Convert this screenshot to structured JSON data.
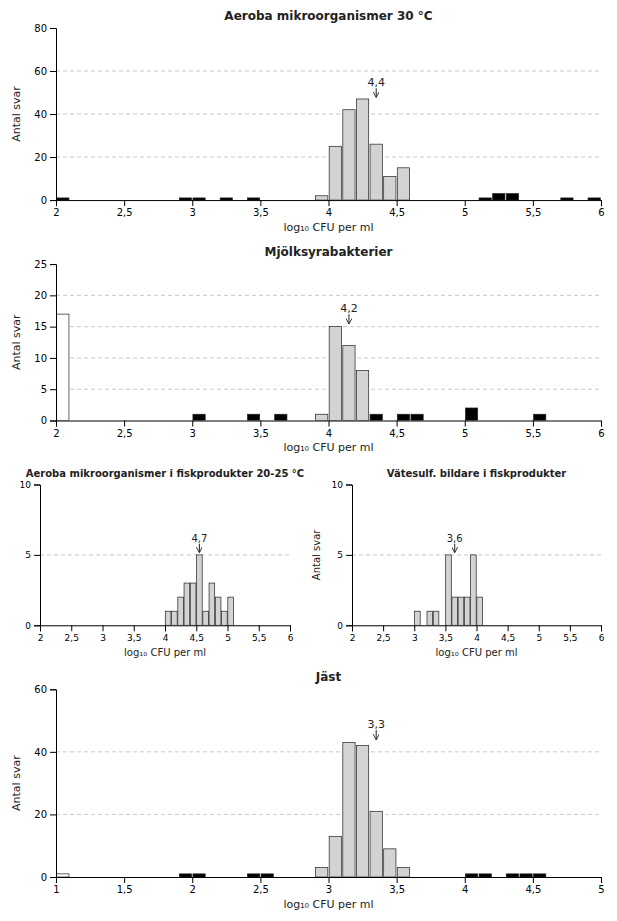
{
  "chart_data": [
    {
      "type": "bar",
      "title": "Aeroba mikroorganismer 30 °C",
      "xlabel": "log₁₀ CFU per ml",
      "ylabel": "Antal svar",
      "xlim": [
        2,
        6
      ],
      "xticks": [
        2,
        {
          "value": 2.5,
          "label": "2,5"
        },
        3,
        {
          "value": 3.5,
          "label": "3,5"
        },
        4,
        {
          "value": 4.5,
          "label": "4,5"
        },
        5,
        {
          "value": 5.5,
          "label": "5,5"
        },
        6
      ],
      "ylim": [
        0,
        80
      ],
      "yticks": [
        0,
        20,
        40,
        60,
        80
      ],
      "grid": true,
      "x": [
        2.05,
        2.95,
        3.05,
        3.25,
        3.45,
        3.95,
        4.05,
        4.15,
        4.25,
        4.35,
        4.45,
        4.55,
        5.15,
        5.25,
        5.35,
        5.75,
        5.95
      ],
      "values": [
        1,
        1,
        1,
        1,
        1,
        2,
        25,
        42,
        47,
        26,
        11,
        15,
        1,
        3,
        3,
        1,
        1
      ],
      "colors": [
        "black",
        "black",
        "black",
        "black",
        "black",
        "lightgray",
        "lightgray",
        "lightgray",
        "lightgray",
        "lightgray",
        "lightgray",
        "lightgray",
        "black",
        "black",
        "black",
        "black",
        "black"
      ],
      "annotations": [
        {
          "text": "4,4",
          "x": 4.35,
          "y": 52,
          "arrow_y": 48
        }
      ]
    },
    {
      "type": "bar",
      "title": "Mjölksyrabakterier",
      "xlabel": "log₁₀ CFU per ml",
      "ylabel": "Antal svar",
      "xlim": [
        2,
        6
      ],
      "xticks": [
        2,
        {
          "value": 2.5,
          "label": "2,5"
        },
        3,
        {
          "value": 3.5,
          "label": "3,5"
        },
        4,
        {
          "value": 4.5,
          "label": "4,5"
        },
        5,
        {
          "value": 5.5,
          "label": "5,5"
        },
        6
      ],
      "ylim": [
        0,
        25
      ],
      "yticks": [
        0,
        5,
        10,
        15,
        20,
        25
      ],
      "grid": true,
      "x": [
        2.05,
        3.05,
        3.45,
        3.65,
        3.95,
        4.05,
        4.15,
        4.25,
        4.35,
        4.55,
        4.65,
        5.05,
        5.55
      ],
      "values": [
        17,
        1,
        1,
        1,
        1,
        15,
        12,
        8,
        1,
        1,
        1,
        2,
        1
      ],
      "colors": [
        "white",
        "black",
        "black",
        "black",
        "lightgray",
        "lightgray",
        "lightgray",
        "lightgray",
        "black",
        "black",
        "black",
        "black",
        "black"
      ],
      "annotations": [
        {
          "text": "4,2",
          "x": 4.15,
          "y": 17,
          "arrow_y": 15.5
        }
      ]
    },
    {
      "type": "bar",
      "title": "Aeroba mikroorganismer i fiskprodukter 20-25 °C",
      "xlabel": "log₁₀ CFU per ml",
      "xlim": [
        2,
        6
      ],
      "xticks": [
        2,
        {
          "value": 2.5,
          "label": "2,5"
        },
        3,
        {
          "value": 3.5,
          "label": "3,5"
        },
        4,
        {
          "value": 4.5,
          "label": "4,5"
        },
        5,
        {
          "value": 5.5,
          "label": "5,5"
        },
        6
      ],
      "ylim": [
        0,
        10
      ],
      "yticks": [
        0,
        5,
        10
      ],
      "grid": true,
      "x": [
        4.05,
        4.15,
        4.25,
        4.35,
        4.45,
        4.55,
        4.65,
        4.75,
        4.85,
        4.95,
        5.05
      ],
      "values": [
        1,
        1,
        2,
        3,
        3,
        5,
        1,
        3,
        2,
        1,
        2
      ],
      "colors": [
        "lightgray",
        "lightgray",
        "lightgray",
        "lightgray",
        "lightgray",
        "lightgray",
        "lightgray",
        "lightgray",
        "lightgray",
        "lightgray",
        "lightgray"
      ],
      "annotations": [
        {
          "text": "4,7",
          "x": 4.55,
          "y": 5.8,
          "arrow_y": 5.2
        }
      ]
    },
    {
      "type": "bar",
      "title": "Vätesulf. bildare i fiskprodukter",
      "xlabel": "log₁₀ CFU per ml",
      "ylabel": "Antal svar",
      "xlim": [
        2,
        6
      ],
      "xticks": [
        2,
        {
          "value": 2.5,
          "label": "2,5"
        },
        3,
        {
          "value": 3.5,
          "label": "3,5"
        },
        4,
        {
          "value": 4.5,
          "label": "4,5"
        },
        5,
        {
          "value": 5.5,
          "label": "5,5"
        },
        6
      ],
      "ylim": [
        0,
        10
      ],
      "yticks": [
        0,
        5,
        10
      ],
      "grid": true,
      "x": [
        3.05,
        3.25,
        3.35,
        3.55,
        3.65,
        3.75,
        3.85,
        3.95,
        4.05
      ],
      "values": [
        1,
        1,
        1,
        5,
        2,
        2,
        2,
        5,
        2
      ],
      "colors": [
        "lightgray",
        "lightgray",
        "lightgray",
        "lightgray",
        "lightgray",
        "lightgray",
        "lightgray",
        "lightgray",
        "lightgray"
      ],
      "annotations": [
        {
          "text": "3,6",
          "x": 3.65,
          "y": 5.8,
          "arrow_y": 5.2
        }
      ]
    },
    {
      "type": "bar",
      "title": "Jäst",
      "xlabel": "log₁₀ CFU per ml",
      "ylabel": "Antal svar",
      "xlim": [
        1,
        5
      ],
      "xticks": [
        1,
        {
          "value": 1.5,
          "label": "1,5"
        },
        2,
        {
          "value": 2.5,
          "label": "2,5"
        },
        3,
        {
          "value": 3.5,
          "label": "3,5"
        },
        4,
        {
          "value": 4.5,
          "label": "4,5"
        },
        5
      ],
      "ylim": [
        0,
        60
      ],
      "yticks": [
        0,
        20,
        40,
        60
      ],
      "grid": true,
      "x": [
        1.05,
        1.95,
        2.05,
        2.45,
        2.55,
        2.95,
        3.05,
        3.15,
        3.25,
        3.35,
        3.45,
        3.55,
        4.05,
        4.15,
        4.35,
        4.45,
        4.55
      ],
      "values": [
        1,
        1,
        1,
        1,
        1,
        3,
        13,
        43,
        42,
        21,
        9,
        3,
        1,
        1,
        1,
        1,
        1
      ],
      "colors": [
        "white",
        "black",
        "black",
        "black",
        "black",
        "lightgray",
        "lightgray",
        "lightgray",
        "lightgray",
        "lightgray",
        "lightgray",
        "lightgray",
        "black",
        "black",
        "black",
        "black",
        "black"
      ],
      "annotations": [
        {
          "text": "3,3",
          "x": 3.35,
          "y": 47,
          "arrow_y": 44
        }
      ]
    }
  ]
}
